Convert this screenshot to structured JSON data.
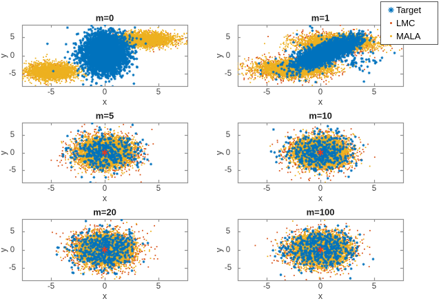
{
  "legend": {
    "entries": [
      {
        "label": "Target",
        "series": "target",
        "marker": "star"
      },
      {
        "label": "LMC",
        "series": "lmc",
        "marker": "dot"
      },
      {
        "label": "MALA",
        "series": "mala",
        "marker": "dot"
      }
    ]
  },
  "chart_data": {
    "type": "scatter",
    "xlabel": "x",
    "ylabel": "y",
    "xlim": [
      -7.7,
      7.7
    ],
    "ylim": [
      -8.5,
      8.5
    ],
    "xticks": [
      "-5",
      "0",
      "5"
    ],
    "xtick_values": [
      -5,
      0,
      5
    ],
    "yticks": [
      "5",
      "0",
      "-5"
    ],
    "ytick_values": [
      5,
      0,
      -5
    ],
    "grid": false,
    "legend_position": "top-right-outside",
    "series_colors": {
      "target": "#0072BD",
      "lmc": "#D95319",
      "mala": "#EDB120"
    },
    "center_marker_color": "#E8391F",
    "axis_color": "#909090",
    "tick_label_color": "#3d3d3d",
    "title_color": "#1a1a1a",
    "draw_order": [
      "lmc",
      "mala",
      "target"
    ],
    "subplots": [
      {
        "title": "m=0",
        "center_star": false,
        "series": {
          "lmc": {
            "clusters": [
              {
                "x": -5.0,
                "y": -4.5,
                "sx": 1.1,
                "sy": 1.15,
                "n": 260
              },
              {
                "x": 3.8,
                "y": 4.4,
                "sx": 1.3,
                "sy": 1.0,
                "n": 260
              }
            ]
          },
          "mala": {
            "clusters": [
              {
                "x": -5.0,
                "y": -4.5,
                "sx": 1.1,
                "sy": 1.15,
                "n": 2600
              },
              {
                "x": 3.8,
                "y": 4.4,
                "sx": 1.3,
                "sy": 1.0,
                "n": 2600
              }
            ]
          },
          "target": {
            "clusters": [
              {
                "x": 0.0,
                "y": 0.6,
                "sx": 0.95,
                "sy": 2.5,
                "n": 3800
              },
              {
                "x": 0.0,
                "y": 0.0,
                "sx": 1.6,
                "sy": 3.4,
                "n": 120
              }
            ]
          }
        }
      },
      {
        "title": "m=1",
        "center_star": false,
        "series": {
          "lmc": {
            "clusters": [
              {
                "x": -2.5,
                "y": -3.6,
                "sx": 2.0,
                "sy": 1.5,
                "n": 750
              },
              {
                "x": 1.6,
                "y": 3.5,
                "sx": 1.9,
                "sy": 1.45,
                "n": 750
              }
            ]
          },
          "mala": {
            "clusters": [
              {
                "x": -2.5,
                "y": -3.6,
                "sx": 1.7,
                "sy": 1.2,
                "n": 3000
              },
              {
                "x": 1.6,
                "y": 3.5,
                "sx": 1.7,
                "sy": 1.15,
                "n": 3000
              }
            ]
          },
          "target": {
            "clusters": [
              {
                "x": 0.6,
                "y": 0.8,
                "sx": 1.4,
                "sy": 2.0,
                "corr": 0.78,
                "n": 2600
              },
              {
                "x": 3.8,
                "y": -1.5,
                "sx": 0.9,
                "sy": 0.7,
                "n": 25
              },
              {
                "x": 0.3,
                "y": 0.3,
                "sx": 2.6,
                "sy": 3.0,
                "n": 130
              }
            ]
          }
        }
      },
      {
        "title": "m=5",
        "center_star": true,
        "series": {
          "lmc": {
            "clusters": [
              {
                "x": 0,
                "y": 0,
                "sx": 1.5,
                "sy": 2.5,
                "n": 1300
              }
            ]
          },
          "mala": {
            "clusters": [
              {
                "x": 0,
                "y": 0,
                "sx": 1.15,
                "sy": 1.95,
                "n": 5200
              }
            ]
          },
          "target": {
            "clusters": [
              {
                "x": 0,
                "y": 0,
                "sx": 1.55,
                "sy": 2.6,
                "n": 420
              }
            ]
          }
        }
      },
      {
        "title": "m=10",
        "center_star": true,
        "series": {
          "lmc": {
            "clusters": [
              {
                "x": 0,
                "y": 0,
                "sx": 1.5,
                "sy": 2.5,
                "n": 1350
              }
            ]
          },
          "mala": {
            "clusters": [
              {
                "x": 0,
                "y": 0,
                "sx": 1.17,
                "sy": 1.97,
                "n": 5200
              }
            ]
          },
          "target": {
            "clusters": [
              {
                "x": 0,
                "y": 0,
                "sx": 1.55,
                "sy": 2.6,
                "n": 430
              }
            ]
          }
        }
      },
      {
        "title": "m=20",
        "center_star": true,
        "series": {
          "lmc": {
            "clusters": [
              {
                "x": 0,
                "y": 0,
                "sx": 1.55,
                "sy": 2.6,
                "n": 1400
              }
            ]
          },
          "mala": {
            "clusters": [
              {
                "x": 0,
                "y": 0,
                "sx": 1.18,
                "sy": 2.0,
                "n": 5200
              }
            ]
          },
          "target": {
            "clusters": [
              {
                "x": 0,
                "y": 0,
                "sx": 1.6,
                "sy": 2.7,
                "n": 470
              }
            ]
          }
        }
      },
      {
        "title": "m=100",
        "center_star": true,
        "series": {
          "lmc": {
            "clusters": [
              {
                "x": 0,
                "y": 0,
                "sx": 1.55,
                "sy": 2.6,
                "n": 1400
              }
            ]
          },
          "mala": {
            "clusters": [
              {
                "x": 0,
                "y": 0,
                "sx": 1.2,
                "sy": 2.05,
                "n": 5300
              }
            ]
          },
          "target": {
            "clusters": [
              {
                "x": 0,
                "y": 0,
                "sx": 1.6,
                "sy": 2.7,
                "n": 500
              }
            ]
          }
        }
      }
    ]
  }
}
